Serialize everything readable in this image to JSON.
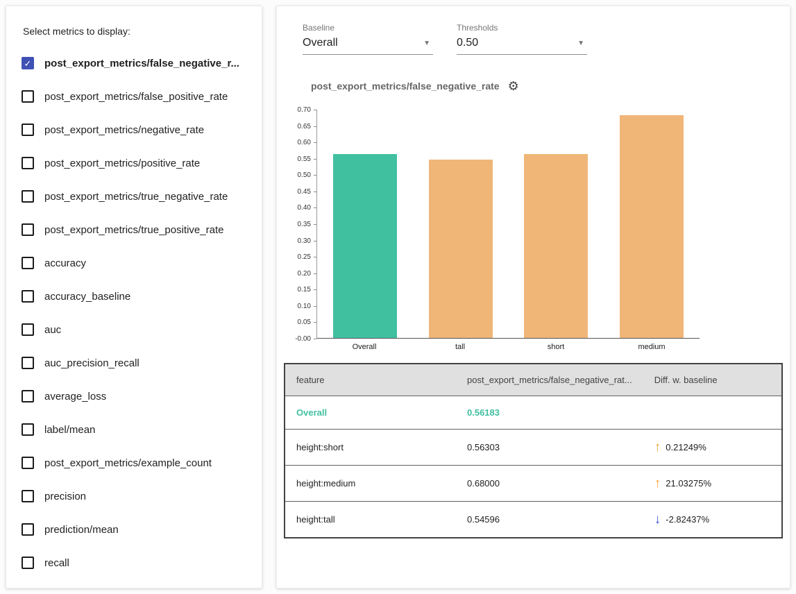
{
  "colors": {
    "teal": "#41c0a0",
    "orange": "#f0b678",
    "up_arrow": "#f5a431",
    "down_arrow": "#3d52d5",
    "checkbox_checked": "#3f51b5",
    "header_bg": "#e0e0e0"
  },
  "sidebar": {
    "title": "Select metrics to display:",
    "metrics": [
      {
        "label": "post_export_metrics/false_negative_r...",
        "checked": true
      },
      {
        "label": "post_export_metrics/false_positive_rate",
        "checked": false
      },
      {
        "label": "post_export_metrics/negative_rate",
        "checked": false
      },
      {
        "label": "post_export_metrics/positive_rate",
        "checked": false
      },
      {
        "label": "post_export_metrics/true_negative_rate",
        "checked": false
      },
      {
        "label": "post_export_metrics/true_positive_rate",
        "checked": false
      },
      {
        "label": "accuracy",
        "checked": false
      },
      {
        "label": "accuracy_baseline",
        "checked": false
      },
      {
        "label": "auc",
        "checked": false
      },
      {
        "label": "auc_precision_recall",
        "checked": false
      },
      {
        "label": "average_loss",
        "checked": false
      },
      {
        "label": "label/mean",
        "checked": false
      },
      {
        "label": "post_export_metrics/example_count",
        "checked": false
      },
      {
        "label": "precision",
        "checked": false
      },
      {
        "label": "prediction/mean",
        "checked": false
      },
      {
        "label": "recall",
        "checked": false
      }
    ]
  },
  "controls": {
    "baseline_label": "Baseline",
    "baseline_value": "Overall",
    "thresholds_label": "Thresholds",
    "thresholds_value": "0.50"
  },
  "chart": {
    "title": "post_export_metrics/false_negative_rate"
  },
  "chart_data": {
    "type": "bar",
    "categories": [
      "Overall",
      "tall",
      "short",
      "medium"
    ],
    "values": [
      0.56183,
      0.54596,
      0.56303,
      0.68
    ],
    "bar_colors": [
      "#41c0a0",
      "#f0b678",
      "#f0b678",
      "#f0b678"
    ],
    "title": "post_export_metrics/false_negative_rate",
    "xlabel": "",
    "ylabel": "",
    "ylim": [
      0,
      0.7
    ],
    "ytick_step": 0.05,
    "grid": false,
    "legend": "none"
  },
  "table": {
    "headers": [
      "feature",
      "post_export_metrics/false_negative_rat...",
      "Diff. w. baseline"
    ],
    "rows": [
      {
        "feature": "Overall",
        "value": "0.56183",
        "diff": "",
        "direction": "none",
        "baseline": true
      },
      {
        "feature": "height:short",
        "value": "0.56303",
        "diff": "0.21249%",
        "direction": "up",
        "baseline": false
      },
      {
        "feature": "height:medium",
        "value": "0.68000",
        "diff": "21.03275%",
        "direction": "up",
        "baseline": false
      },
      {
        "feature": "height:tall",
        "value": "0.54596",
        "diff": "-2.82437%",
        "direction": "down",
        "baseline": false
      }
    ]
  }
}
